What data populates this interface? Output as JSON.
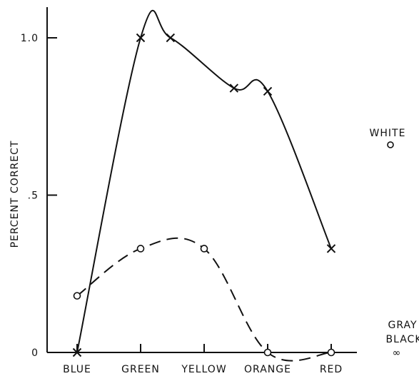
{
  "chart_data": {
    "type": "line",
    "ylabel": "PERCENT CORRECT",
    "xlabel": "",
    "categories": [
      "BLUE",
      "GREEN",
      "YELLOW",
      "ORANGE",
      "RED"
    ],
    "yticks": [
      {
        "value": 0,
        "label": "0"
      },
      {
        "value": 0.5,
        "label": ".5"
      },
      {
        "value": 1.0,
        "label": "1.0"
      }
    ],
    "ylim": [
      0,
      1.1
    ],
    "series": [
      {
        "marker": "x",
        "style": "solid",
        "points": [
          {
            "x": 0,
            "y": 0.0
          },
          {
            "x": 1,
            "y": 1.0
          },
          {
            "x": 1.47,
            "y": 1.0
          },
          {
            "x": 2.47,
            "y": 0.84
          },
          {
            "x": 3.0,
            "y": 0.83
          },
          {
            "x": 4.0,
            "y": 0.33
          }
        ]
      },
      {
        "marker": "o",
        "style": "dashed",
        "points": [
          {
            "x": 0,
            "y": 0.18
          },
          {
            "x": 1,
            "y": 0.33
          },
          {
            "x": 2,
            "y": 0.33
          },
          {
            "x": 3,
            "y": 0.0
          },
          {
            "x": 4,
            "y": 0.0
          }
        ]
      }
    ],
    "annotations": [
      {
        "label": "WHITE",
        "marker": "o",
        "y": 0.66
      },
      {
        "label": "GRAY",
        "label2": "BLACK",
        "marker": "∞",
        "y": 0.0
      }
    ]
  }
}
